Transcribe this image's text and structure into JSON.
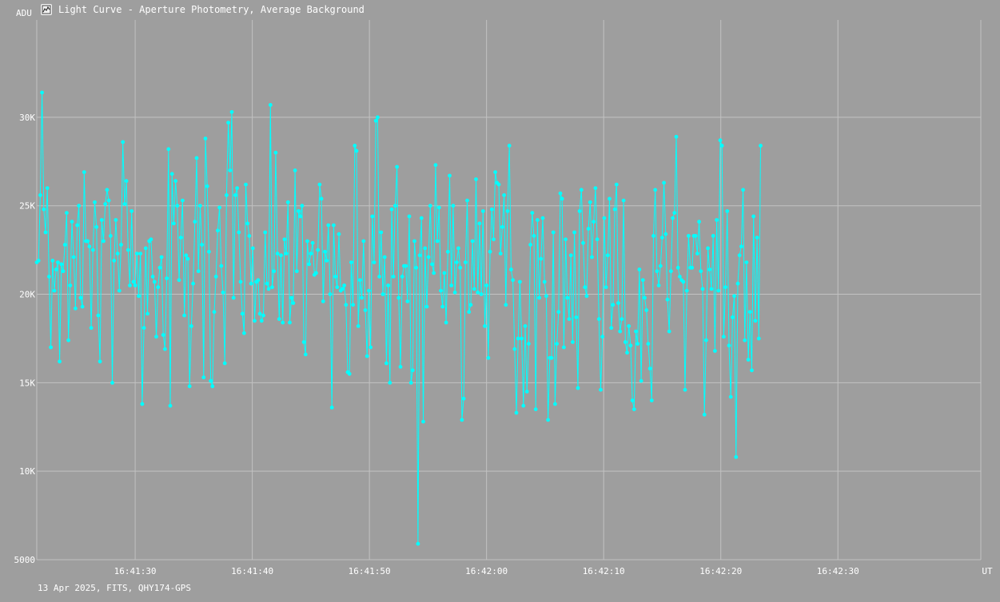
{
  "window": {
    "title": "Light Curve - Aperture Photometry, Average Background",
    "icon": "chart-app-icon"
  },
  "footer": {
    "caption": "13 Apr 2025, FITS, QHY174-GPS"
  },
  "colors": {
    "background": "#9e9e9e",
    "grid": "#c2c2c2",
    "series": "#00ffff",
    "text": "#ffffff"
  },
  "chart_data": {
    "type": "line",
    "title": "Light Curve - Aperture Photometry, Average Background",
    "ylabel": "ADU",
    "xlabel": "UT",
    "ylim": [
      5000,
      35500
    ],
    "xlim": [
      "16:41:21.6",
      "16:42:42.2"
    ],
    "grid": true,
    "markers": true,
    "y_ticks": [
      {
        "value": 5000,
        "label": "5000"
      },
      {
        "value": 10000,
        "label": "10K"
      },
      {
        "value": 15000,
        "label": "15K"
      },
      {
        "value": 20000,
        "label": "20K"
      },
      {
        "value": 25000,
        "label": "25K"
      },
      {
        "value": 30000,
        "label": "30K"
      }
    ],
    "x_ticks": [
      {
        "value": "16:41:30",
        "label": "16:41:30"
      },
      {
        "value": "16:41:40",
        "label": "16:41:40"
      },
      {
        "value": "16:41:50",
        "label": "16:41:50"
      },
      {
        "value": "16:42:00",
        "label": "16:42:00"
      },
      {
        "value": "16:42:10",
        "label": "16:42:10"
      },
      {
        "value": "16:42:20",
        "label": "16:42:20"
      },
      {
        "value": "16:42:30",
        "label": "16:42:30"
      }
    ],
    "x_start": "16:41:21.6",
    "x_step_seconds": 0.15,
    "series": [
      {
        "values": [
          21800,
          21900,
          25600,
          31400,
          24800,
          23500,
          26000,
          21000,
          17000,
          21900,
          20200,
          21400,
          21800,
          16200,
          21700,
          21300,
          22800,
          24600,
          17400,
          20500,
          24100,
          22100,
          19200,
          23900,
          25000,
          19800,
          19300,
          26900,
          23000,
          23000,
          22700,
          18100,
          22500,
          25200,
          23800,
          18800,
          16200,
          24200,
          23000,
          25100,
          25900,
          25300,
          23300,
          15000,
          21900,
          24200,
          22300,
          20200,
          22800,
          28600,
          25100,
          26400,
          22500,
          20500,
          24700,
          20700,
          20500,
          22300,
          19900,
          22300,
          13800,
          18100,
          22600,
          18900,
          23000,
          23100,
          21000,
          20700,
          17600,
          20400,
          21500,
          22100,
          17700,
          16900,
          20900,
          28200,
          13700,
          26800,
          24000,
          26400,
          25000,
          20800,
          23200,
          25300,
          18800,
          22200,
          22000,
          14800,
          18200,
          20600,
          24100,
          27700,
          21300,
          25000,
          22800,
          15300,
          28800,
          26100,
          22400,
          15100,
          14800,
          19000,
          21000,
          23600,
          24900,
          21600,
          20100,
          16100,
          25600,
          29700,
          27000,
          30300,
          19800,
          25600,
          26000,
          23500,
          20700,
          18900,
          17800,
          26200,
          24000,
          23300,
          20600,
          22600,
          18500,
          20700,
          20800,
          18900,
          18500,
          18800,
          23500,
          20600,
          20300,
          30700,
          20400,
          21300,
          28000,
          22300,
          18600,
          22200,
          18400,
          23100,
          22300,
          25200,
          18400,
          19800,
          19500,
          27000,
          21300,
          24700,
          24400,
          25000,
          17300,
          16600,
          23000,
          21700,
          22300,
          22900,
          21100,
          21200,
          22500,
          26200,
          25400,
          19600,
          22400,
          21900,
          23900,
          20000,
          13600,
          23900,
          21000,
          20400,
          23400,
          20200,
          20300,
          20500,
          19400,
          15600,
          15500,
          21800,
          19400,
          28400,
          28100,
          18200,
          20800,
          19800,
          23000,
          19100,
          16500,
          20200,
          17000,
          24400,
          21800,
          29800,
          30000,
          21000,
          23500,
          20000,
          22100,
          16100,
          20500,
          15000,
          24800,
          21000,
          25000,
          27200,
          19800,
          15900,
          21000,
          21600,
          21600,
          19600,
          24400,
          15000,
          15700,
          23000,
          21500,
          5900,
          22200,
          24300,
          12800,
          22600,
          19300,
          22100,
          25000,
          21700,
          21200,
          27300,
          23000,
          24900,
          20200,
          19300,
          21200,
          18400,
          22400,
          26700,
          20500,
          25000,
          20100,
          21800,
          22600,
          21500,
          12900,
          14100,
          21800,
          25300,
          19000,
          19400,
          23000,
          20300,
          26500,
          20100,
          24000,
          20000,
          24700,
          18200,
          20500,
          16400,
          22400,
          24800,
          23100,
          26900,
          26300,
          26200,
          22300,
          23800,
          25600,
          19400,
          24700,
          28400,
          21400,
          20800,
          16900,
          13300,
          17500,
          20700,
          17500,
          13700,
          18200,
          14500,
          17200,
          22800,
          24600,
          23300,
          13500,
          24200,
          19800,
          22000,
          24300,
          20700,
          19900,
          12900,
          16400,
          16400,
          23500,
          13800,
          17200,
          19000,
          25700,
          25400,
          17000,
          23100,
          19800,
          18600,
          22200,
          17300,
          23500,
          18700,
          14700,
          24700,
          25900,
          22900,
          20400,
          19900,
          23700,
          25200,
          22100,
          24100,
          26000,
          23100,
          18600,
          14600,
          17600,
          24300,
          20400,
          22200,
          25400,
          18100,
          19400,
          24800,
          26200,
          19500,
          17900,
          18600,
          25300,
          17300,
          16700,
          18200,
          17100,
          14000,
          13500,
          17900,
          17200,
          21400,
          15100,
          20800,
          19800,
          19100,
          17200,
          15800,
          14000,
          23300,
          25900,
          21300,
          20500,
          21600,
          23200,
          26300,
          23400,
          19700,
          17900,
          21300,
          24300,
          24600,
          28900,
          21500,
          21000,
          20800,
          20700,
          14600,
          20200,
          23300,
          21500,
          21500,
          23300,
          23300,
          22300,
          24100,
          21300,
          20300,
          13200,
          17400,
          22600,
          21400,
          20300,
          23300,
          16800,
          24200,
          20200,
          28700,
          28400,
          17600,
          20400,
          24700,
          17100,
          14200,
          18700,
          19900,
          10800,
          20600,
          22200,
          22700,
          25900,
          17400,
          21800,
          16300,
          19000,
          15700,
          24400,
          18500,
          23200,
          17500,
          28400
        ]
      }
    ]
  }
}
